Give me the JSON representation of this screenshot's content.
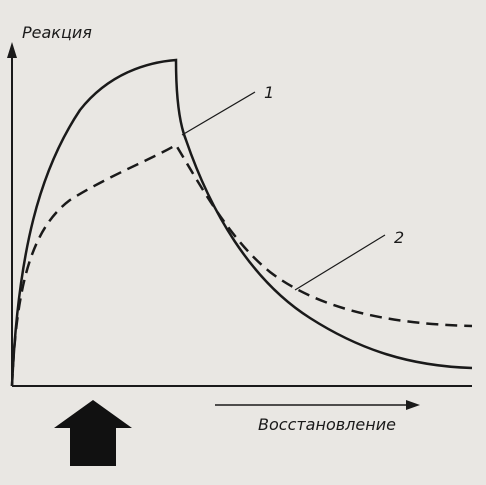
{
  "axes": {
    "y_label": "Реакция",
    "x_label": "Восстановление"
  },
  "curves": [
    {
      "label": "1"
    },
    {
      "label": "2"
    }
  ]
}
